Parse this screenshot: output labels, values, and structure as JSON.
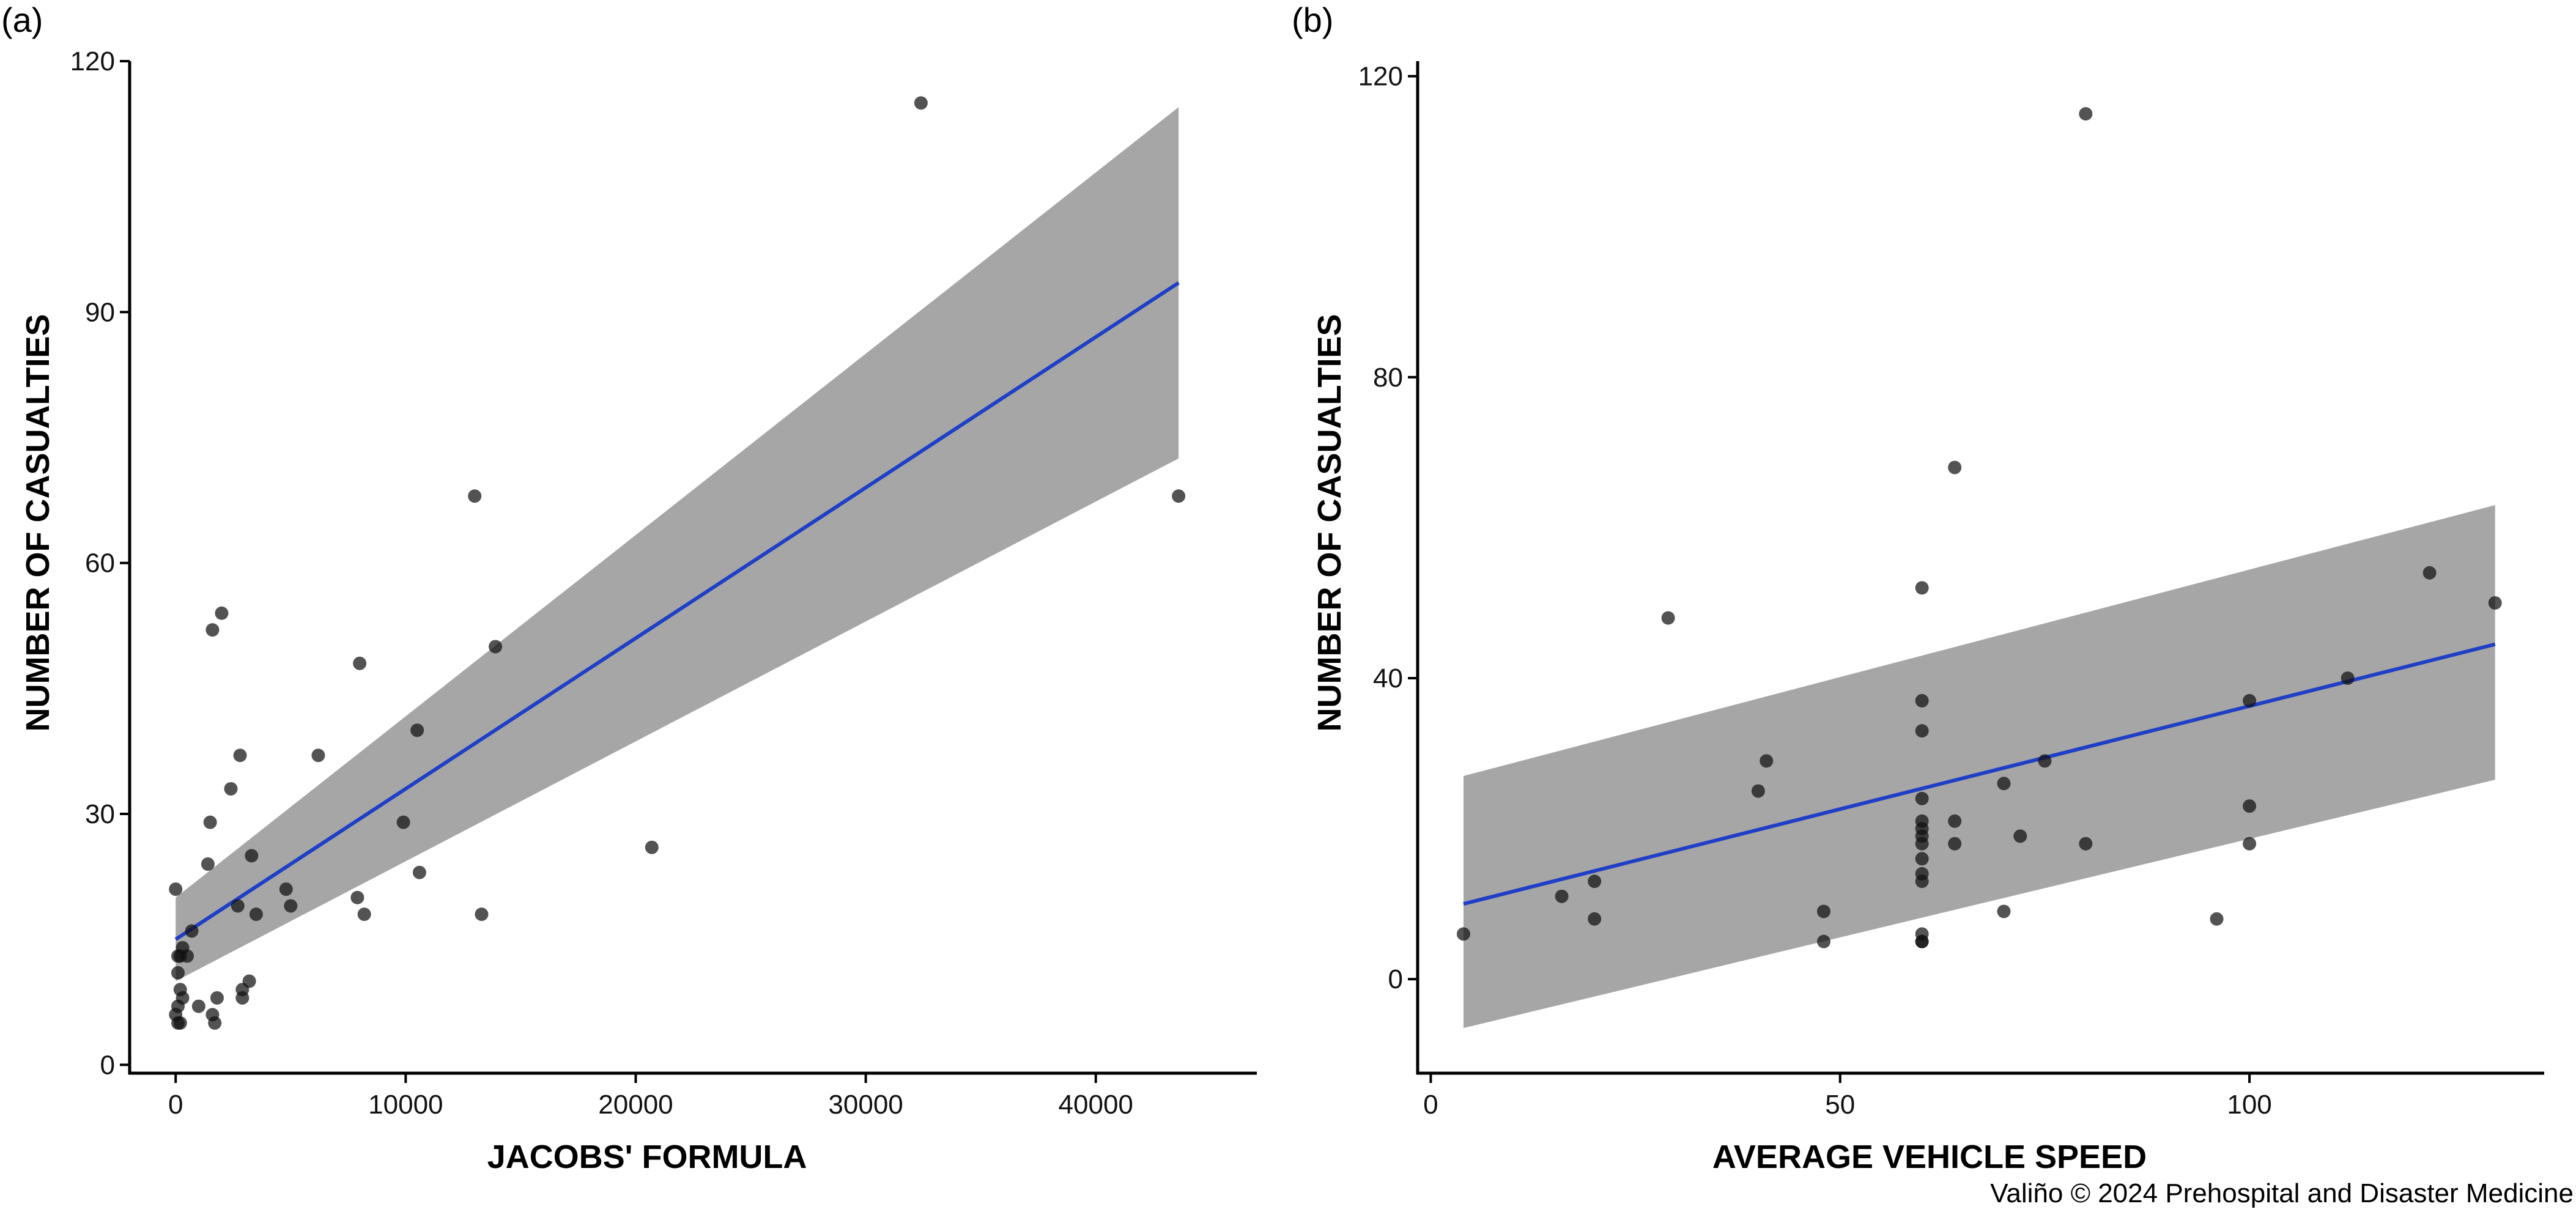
{
  "credit": "Valiño © 2024 Prehospital and Disaster Medicine",
  "chart_data": [
    {
      "type": "scatter",
      "panel_label": "(a)",
      "title": "",
      "xlabel": "JACOBS' FORMULA",
      "ylabel": "NUMBER OF CASUALTIES",
      "xlim": [
        -2000,
        47000
      ],
      "ylim": [
        -1,
        120
      ],
      "x_ticks": [
        0,
        10000,
        20000,
        30000,
        40000
      ],
      "y_ticks": [
        0,
        30,
        60,
        90,
        120
      ],
      "x_tick_labels": [
        "0",
        "10000",
        "20000",
        "30000",
        "40000"
      ],
      "y_tick_labels": [
        "0",
        "30",
        "60",
        "90",
        "120"
      ],
      "points": [
        [
          32400,
          115
        ],
        [
          13000,
          68
        ],
        [
          43600,
          68
        ],
        [
          2000,
          54
        ],
        [
          1600,
          52
        ],
        [
          13900,
          50
        ],
        [
          8000,
          48
        ],
        [
          10500,
          40
        ],
        [
          6200,
          37
        ],
        [
          2800,
          37
        ],
        [
          2400,
          33
        ],
        [
          1500,
          29
        ],
        [
          9900,
          29
        ],
        [
          20700,
          26
        ],
        [
          3300,
          25
        ],
        [
          1400,
          24
        ],
        [
          10600,
          23
        ],
        [
          0,
          21
        ],
        [
          4800,
          21
        ],
        [
          7900,
          20
        ],
        [
          5000,
          19
        ],
        [
          2700,
          19
        ],
        [
          8200,
          18
        ],
        [
          3500,
          18
        ],
        [
          13300,
          18
        ],
        [
          700,
          16
        ],
        [
          300,
          14
        ],
        [
          100,
          13
        ],
        [
          500,
          13
        ],
        [
          200,
          13
        ],
        [
          100,
          11
        ],
        [
          200,
          9
        ],
        [
          3200,
          10
        ],
        [
          2900,
          9
        ],
        [
          300,
          8
        ],
        [
          1800,
          8
        ],
        [
          2900,
          8
        ],
        [
          100,
          7
        ],
        [
          1000,
          7
        ],
        [
          0,
          6
        ],
        [
          1600,
          6
        ],
        [
          100,
          5
        ],
        [
          200,
          5
        ],
        [
          1700,
          5
        ]
      ],
      "fit": {
        "x": [
          0,
          43600
        ],
        "y": [
          15.0,
          93.5
        ],
        "ci_lower": [
          10.0,
          72.5
        ],
        "ci_upper": [
          20.0,
          114.5
        ]
      }
    },
    {
      "type": "scatter",
      "panel_label": "(b)",
      "title": "",
      "xlabel": "AVERAGE VEHICLE SPEED",
      "ylabel": "NUMBER OF CASUALTIES",
      "xlim": [
        -1.6,
        136
      ],
      "ylim": [
        -12.5,
        122
      ],
      "x_ticks": [
        0,
        50,
        100
      ],
      "y_ticks": [
        0,
        40,
        80,
        120
      ],
      "x_tick_labels": [
        "0",
        "50",
        "100"
      ],
      "y_tick_labels": [
        "0",
        "40",
        "80",
        "120"
      ],
      "points": [
        [
          80,
          115
        ],
        [
          64,
          68
        ],
        [
          122,
          54
        ],
        [
          60,
          52
        ],
        [
          130,
          50
        ],
        [
          29,
          48
        ],
        [
          112,
          40
        ],
        [
          60,
          37
        ],
        [
          100,
          37
        ],
        [
          60,
          33
        ],
        [
          41,
          29
        ],
        [
          75,
          29
        ],
        [
          70,
          26
        ],
        [
          40,
          25
        ],
        [
          60,
          24
        ],
        [
          100,
          23
        ],
        [
          60,
          21
        ],
        [
          64,
          21
        ],
        [
          60,
          20
        ],
        [
          60,
          19
        ],
        [
          72,
          19
        ],
        [
          60,
          18
        ],
        [
          64,
          18
        ],
        [
          80,
          18
        ],
        [
          100,
          18
        ],
        [
          60,
          16
        ],
        [
          60,
          14
        ],
        [
          60,
          13
        ],
        [
          20,
          13
        ],
        [
          16,
          11
        ],
        [
          48,
          9
        ],
        [
          70,
          9
        ],
        [
          20,
          8
        ],
        [
          96,
          8
        ],
        [
          4,
          6
        ],
        [
          60,
          6
        ],
        [
          60,
          5
        ],
        [
          48,
          5
        ],
        [
          60,
          5
        ]
      ],
      "fit": {
        "x": [
          4,
          130
        ],
        "y": [
          10.0,
          44.5
        ],
        "ci_lower": [
          -6.5,
          26.5
        ],
        "ci_upper": [
          27.0,
          63.0
        ]
      }
    }
  ]
}
